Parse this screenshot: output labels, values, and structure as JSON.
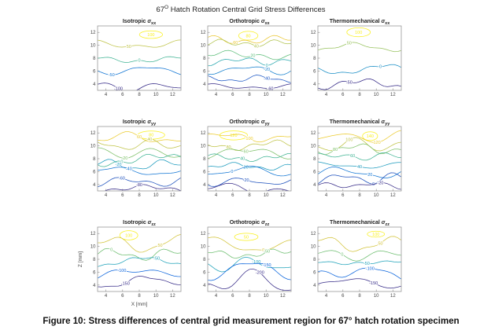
{
  "figure": {
    "title": {
      "num": "67",
      "sup": "O",
      "rest": " Hatch Rotation Central Grid Stress Differences"
    },
    "caption": "Figure 10: Stress differences of central grid measurement region for 67° hatch rotation specimen"
  },
  "chart_data": {
    "type": "contour",
    "layout": "3x3",
    "axes": {
      "xlabel": "X [mm]",
      "ylabel": "Z [mm]",
      "xticks": [
        4,
        6,
        8,
        10,
        12
      ],
      "yticks": [
        4,
        6,
        8,
        10,
        12
      ],
      "xlim": [
        3,
        13
      ],
      "ylim": [
        3,
        13
      ],
      "grid": false
    },
    "colormap": "parula",
    "subplots": [
      {
        "row": 1,
        "col": 1,
        "title_prefix": "Isotropic ",
        "symbol": "σ",
        "subscript": "xx",
        "levels": [
          100,
          50,
          0,
          -50,
          -100
        ],
        "pattern": "bands"
      },
      {
        "row": 1,
        "col": 2,
        "title_prefix": "Orthotropic ",
        "symbol": "σ",
        "subscript": "xx",
        "levels": [
          80,
          60,
          40,
          20,
          0,
          -20,
          -40,
          -60
        ],
        "pattern": "bands"
      },
      {
        "row": 1,
        "col": 3,
        "title_prefix": "Thermomechanical ",
        "symbol": "σ",
        "subscript": "xx",
        "levels": [
          100,
          50,
          0,
          -50
        ],
        "pattern": "bands"
      },
      {
        "row": 2,
        "col": 1,
        "title_prefix": "Isotropic ",
        "symbol": "σ",
        "subscript": "yy",
        "levels": [
          80,
          60,
          40,
          20,
          0,
          -20,
          -40,
          -60,
          -80
        ],
        "pattern": "bands"
      },
      {
        "row": 2,
        "col": 2,
        "title_prefix": "Orthotropic ",
        "symbol": "σ",
        "subscript": "yy",
        "levels": [
          120,
          100,
          80,
          60,
          40,
          20,
          0,
          -20,
          -40
        ],
        "pattern": "bands"
      },
      {
        "row": 2,
        "col": 3,
        "title_prefix": "Thermomechanical ",
        "symbol": "σ",
        "subscript": "yy",
        "levels": [
          140,
          120,
          100,
          80,
          60,
          40,
          20,
          0,
          -20
        ],
        "pattern": "bands"
      },
      {
        "row": 3,
        "col": 1,
        "title_prefix": "Isotropic ",
        "symbol": "σ",
        "subscript": "zz",
        "levels": [
          100,
          50,
          0,
          -50,
          -100,
          -150
        ],
        "pattern": "saddle"
      },
      {
        "row": 3,
        "col": 2,
        "title_prefix": "Orthotropic ",
        "symbol": "σ",
        "subscript": "zz",
        "levels": [
          50,
          0,
          -50,
          -100,
          -150,
          -200
        ],
        "pattern": "saddle"
      },
      {
        "row": 3,
        "col": 3,
        "title_prefix": "Thermomechanical ",
        "symbol": "σ",
        "subscript": "zz",
        "levels": [
          100,
          50,
          0,
          -50,
          -100,
          -150
        ],
        "pattern": "saddle"
      }
    ]
  }
}
